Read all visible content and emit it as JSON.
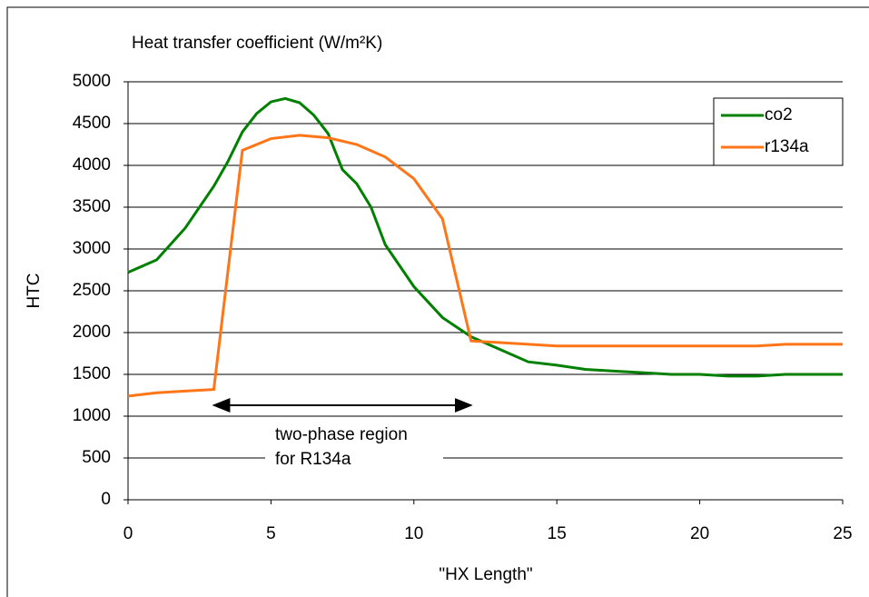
{
  "chart_data": {
    "type": "line",
    "title": "Heat transfer coefficient (W/m²K)",
    "x_label": "\"HX Length\"",
    "y_label": "HTC",
    "xlim": [
      0,
      25
    ],
    "xticks": [
      0,
      5,
      10,
      15,
      20,
      25
    ],
    "ylim": [
      0,
      5000
    ],
    "yticks": [
      0,
      500,
      1000,
      1500,
      2000,
      2500,
      3000,
      3500,
      4000,
      4500,
      5000
    ],
    "grid": true,
    "legend": "upper right",
    "annotation": [
      "two-phase region",
      "for R134a"
    ],
    "annotation_span": [
      3,
      12
    ],
    "series": [
      {
        "name": "co2",
        "color": "#008000",
        "x": [
          0,
          1,
          2,
          3,
          3.5,
          4,
          4.5,
          5,
          5.5,
          6,
          6.5,
          7,
          7.5,
          8,
          8.5,
          9,
          9.5,
          10,
          11,
          12,
          13,
          14,
          15,
          16,
          17,
          18,
          19,
          20,
          21,
          22,
          23,
          24,
          25
        ],
        "values": [
          2720,
          2870,
          3250,
          3750,
          4050,
          4400,
          4620,
          4760,
          4800,
          4750,
          4600,
          4380,
          3950,
          3780,
          3500,
          3050,
          2800,
          2550,
          2180,
          1950,
          1800,
          1650,
          1610,
          1560,
          1540,
          1520,
          1500,
          1500,
          1480,
          1480,
          1500,
          1500,
          1500
        ]
      },
      {
        "name": "r134a",
        "color": "#ff7518",
        "x": [
          0,
          1,
          2,
          3,
          4,
          5,
          6,
          7,
          8,
          9,
          10,
          11,
          12,
          13,
          15,
          20,
          22,
          23,
          25
        ],
        "values": [
          1240,
          1280,
          1300,
          1320,
          4180,
          4320,
          4360,
          4330,
          4250,
          4100,
          3840,
          3360,
          1900,
          1880,
          1840,
          1840,
          1840,
          1860,
          1860
        ]
      }
    ]
  }
}
